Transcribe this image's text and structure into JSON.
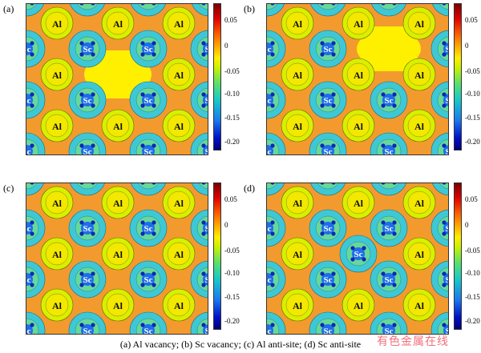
{
  "panels": [
    {
      "label": "(a)",
      "defect": "al-vacancy",
      "center": "none"
    },
    {
      "label": "(b)",
      "defect": "sc-vacancy",
      "center": "none"
    },
    {
      "label": "(c)",
      "defect": "al-antisite",
      "center": "Al"
    },
    {
      "label": "(d)",
      "defect": "sc-antisite",
      "center": "Sc"
    }
  ],
  "colorbars": [
    {
      "ticks": [
        "0.05",
        "0",
        "-0.05",
        "-0.10",
        "-0.15",
        "-0.20"
      ]
    },
    {
      "ticks": [
        "0.05",
        "0",
        "-0.05",
        "-0.10",
        "-0.15",
        "-0.20"
      ]
    },
    {
      "ticks": [
        "0.05",
        "0",
        "-0.05",
        "-0.10",
        "-0.15",
        "-0.20"
      ]
    },
    {
      "ticks": [
        "0.05",
        "0",
        "-0.05",
        "-0.10",
        "-0.15",
        "-0.20"
      ]
    }
  ],
  "atoms": {
    "al": "Al",
    "sc": "Sc"
  },
  "caption": "(a) Al vacancy; (b) Sc vacancy; (c) Al anti-site; (d) Sc anti-site",
  "watermark": "有色金属在线",
  "colors": {
    "background": "#f39a2f",
    "al_shell": "#d8f000",
    "al_core": "#f2e800",
    "sc_outer": "#3ec8d6",
    "sc_mid": "#67d89a",
    "sc_core": "#1e6ee8",
    "sc_dot": "#0a28b8",
    "vacancy": "#fff000",
    "high": "#e85a10"
  }
}
